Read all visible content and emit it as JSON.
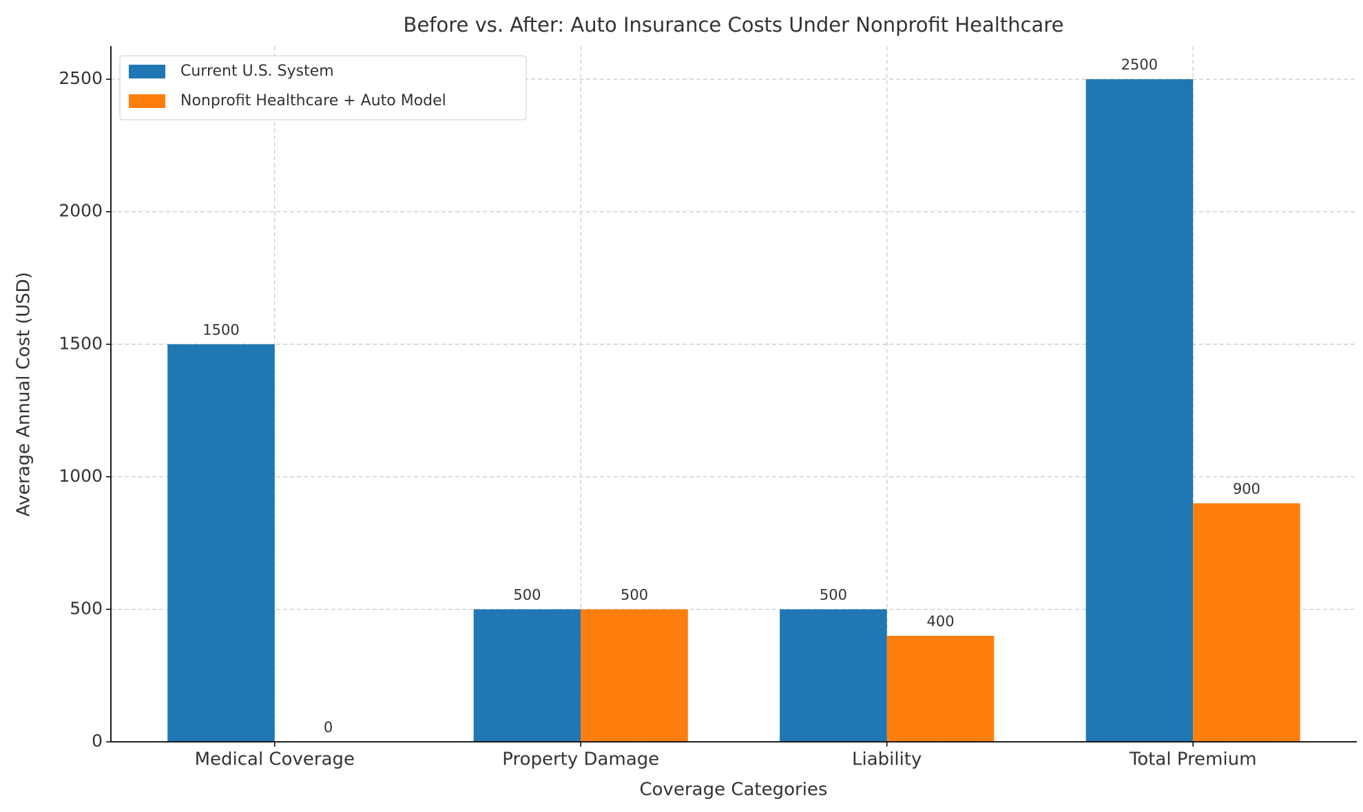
{
  "chart_data": {
    "type": "bar",
    "title": "Before vs. After: Auto Insurance Costs Under Nonprofit Healthcare",
    "xlabel": "Coverage Categories",
    "ylabel": "Average Annual Cost (USD)",
    "categories": [
      "Medical Coverage",
      "Property Damage",
      "Liability",
      "Total Premium"
    ],
    "series": [
      {
        "name": "Current U.S. System",
        "color": "#1f77b4",
        "values": [
          1500,
          500,
          500,
          2500
        ]
      },
      {
        "name": "Nonprofit Healthcare + Auto Model",
        "color": "#ff7f0e",
        "values": [
          0,
          500,
          400,
          900
        ]
      }
    ],
    "ylim": [
      0,
      2625
    ],
    "yticks": [
      0,
      500,
      1000,
      1500,
      2000,
      2500
    ],
    "grid": true,
    "legend": "upper left"
  }
}
